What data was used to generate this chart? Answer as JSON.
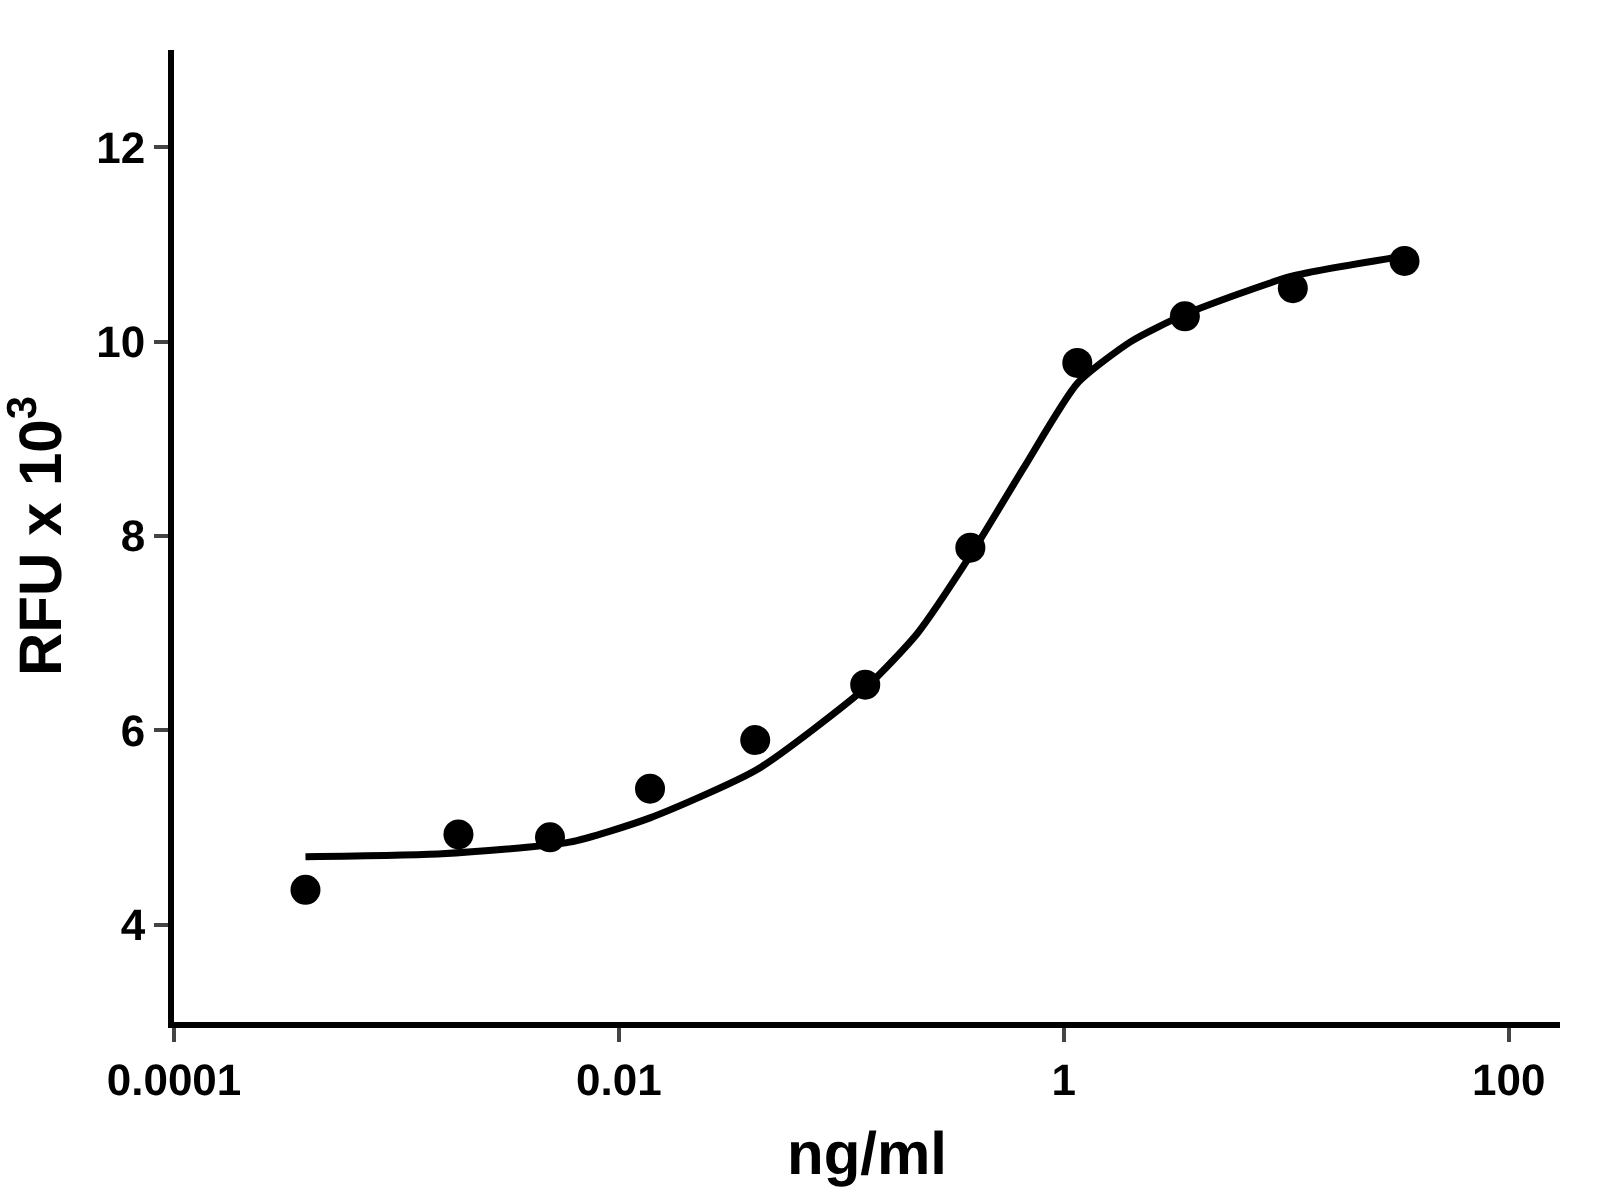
{
  "chart_data": {
    "type": "scatter",
    "xlabel": "ng/ml",
    "ylabel": "RFU x 10$^{3}$",
    "log": "x",
    "xlim": [
      0.0001,
      170
    ],
    "xticks": [
      {
        "value": 0.0001,
        "label": "0.0001"
      },
      {
        "value": 0.01,
        "label": "0.01"
      },
      1,
      100
    ],
    "ylim": [
      3,
      13
    ],
    "yticks": [
      4,
      6,
      8,
      10,
      12
    ],
    "series": [
      {
        "marker": "circle",
        "color": "#000000",
        "x": [
          0.00039,
          0.0019,
          0.0049,
          0.0138,
          0.041,
          0.128,
          0.38,
          1.15,
          3.5,
          10.7,
          34
        ],
        "values": [
          4.36,
          4.93,
          4.9,
          5.4,
          5.9,
          6.47,
          7.88,
          9.78,
          10.26,
          10.55,
          10.83
        ]
      },
      {
        "type": "line",
        "marker": "none",
        "line_style": "solid",
        "color": "#000000",
        "x": [
          0.00039,
          0.0016,
          0.006,
          0.0138,
          0.042,
          0.13,
          0.22,
          0.38,
          0.66,
          1.15,
          2.0,
          3.5,
          10.5,
          34
        ],
        "values": [
          4.7,
          4.73,
          4.85,
          5.1,
          5.6,
          6.45,
          7.0,
          7.8,
          8.7,
          9.57,
          10.0,
          10.28,
          10.67,
          10.88
        ]
      }
    ]
  }
}
